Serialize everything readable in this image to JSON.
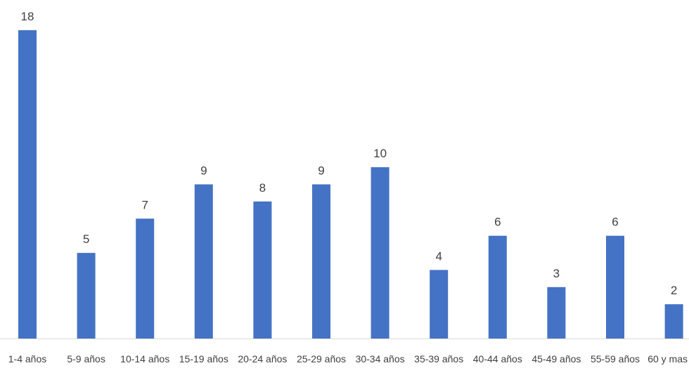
{
  "chart_data": {
    "type": "bar",
    "title": "",
    "xlabel": "",
    "ylabel": "",
    "categories": [
      "1-4 años",
      "5-9 años",
      "10-14 años",
      "15-19 años",
      "20-24 años",
      "25-29 años",
      "30-34 años",
      "35-39 años",
      "40-44 años",
      "45-49 años",
      "55-59 años",
      "60 y mas"
    ],
    "values": [
      18,
      5,
      7,
      9,
      8,
      9,
      10,
      4,
      6,
      3,
      6,
      2
    ],
    "ylim": [
      0,
      18
    ],
    "grid": false,
    "legend": "none",
    "data_labels": true,
    "bar_color": "#4472C4",
    "axis_color": "#D9D9D9",
    "label_color": "#404040"
  }
}
